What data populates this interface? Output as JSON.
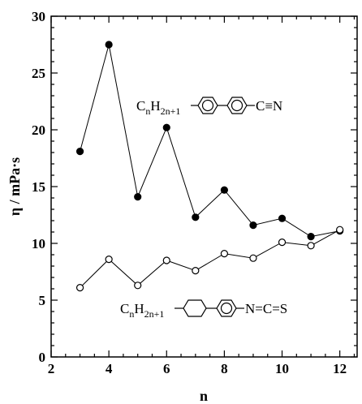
{
  "chart_data": {
    "type": "line",
    "xlabel": "n",
    "ylabel": "η / mPa·s",
    "xlim": [
      2,
      12.6
    ],
    "ylim": [
      0,
      30
    ],
    "xticks": [
      2,
      4,
      6,
      8,
      10,
      12
    ],
    "yticks": [
      0,
      5,
      10,
      15,
      20,
      25,
      30
    ],
    "x_minor_step": 0.5,
    "y_minor_step": 1,
    "grid": false,
    "series": [
      {
        "marker": "filled-circle",
        "color": "#000000",
        "x": [
          3,
          4,
          5,
          6,
          7,
          8,
          9,
          10,
          11,
          12
        ],
        "y": [
          18.1,
          27.5,
          14.1,
          20.2,
          12.3,
          14.7,
          11.6,
          12.2,
          10.6,
          11.1
        ]
      },
      {
        "marker": "open-circle",
        "color": "#000000",
        "x": [
          3,
          4,
          5,
          6,
          7,
          8,
          9,
          10,
          11,
          12
        ],
        "y": [
          6.1,
          8.6,
          6.3,
          8.5,
          7.6,
          9.1,
          8.7,
          10.1,
          9.8,
          11.2
        ]
      }
    ],
    "annotations": [
      {
        "for_series": 0,
        "parts": [
          {
            "text": "C",
            "sub": false
          },
          {
            "text": "n",
            "sub": true
          },
          {
            "text": "H",
            "sub": false
          },
          {
            "text": "2n+1",
            "sub": true
          }
        ],
        "rings": [
          "benzene",
          "benzene"
        ],
        "tail": "C≡N"
      },
      {
        "for_series": 1,
        "parts": [
          {
            "text": "C",
            "sub": false
          },
          {
            "text": "n",
            "sub": true
          },
          {
            "text": "H",
            "sub": false
          },
          {
            "text": "2n+1",
            "sub": true
          }
        ],
        "rings": [
          "cyclohexane",
          "benzene"
        ],
        "tail": "N=C=S"
      }
    ]
  }
}
